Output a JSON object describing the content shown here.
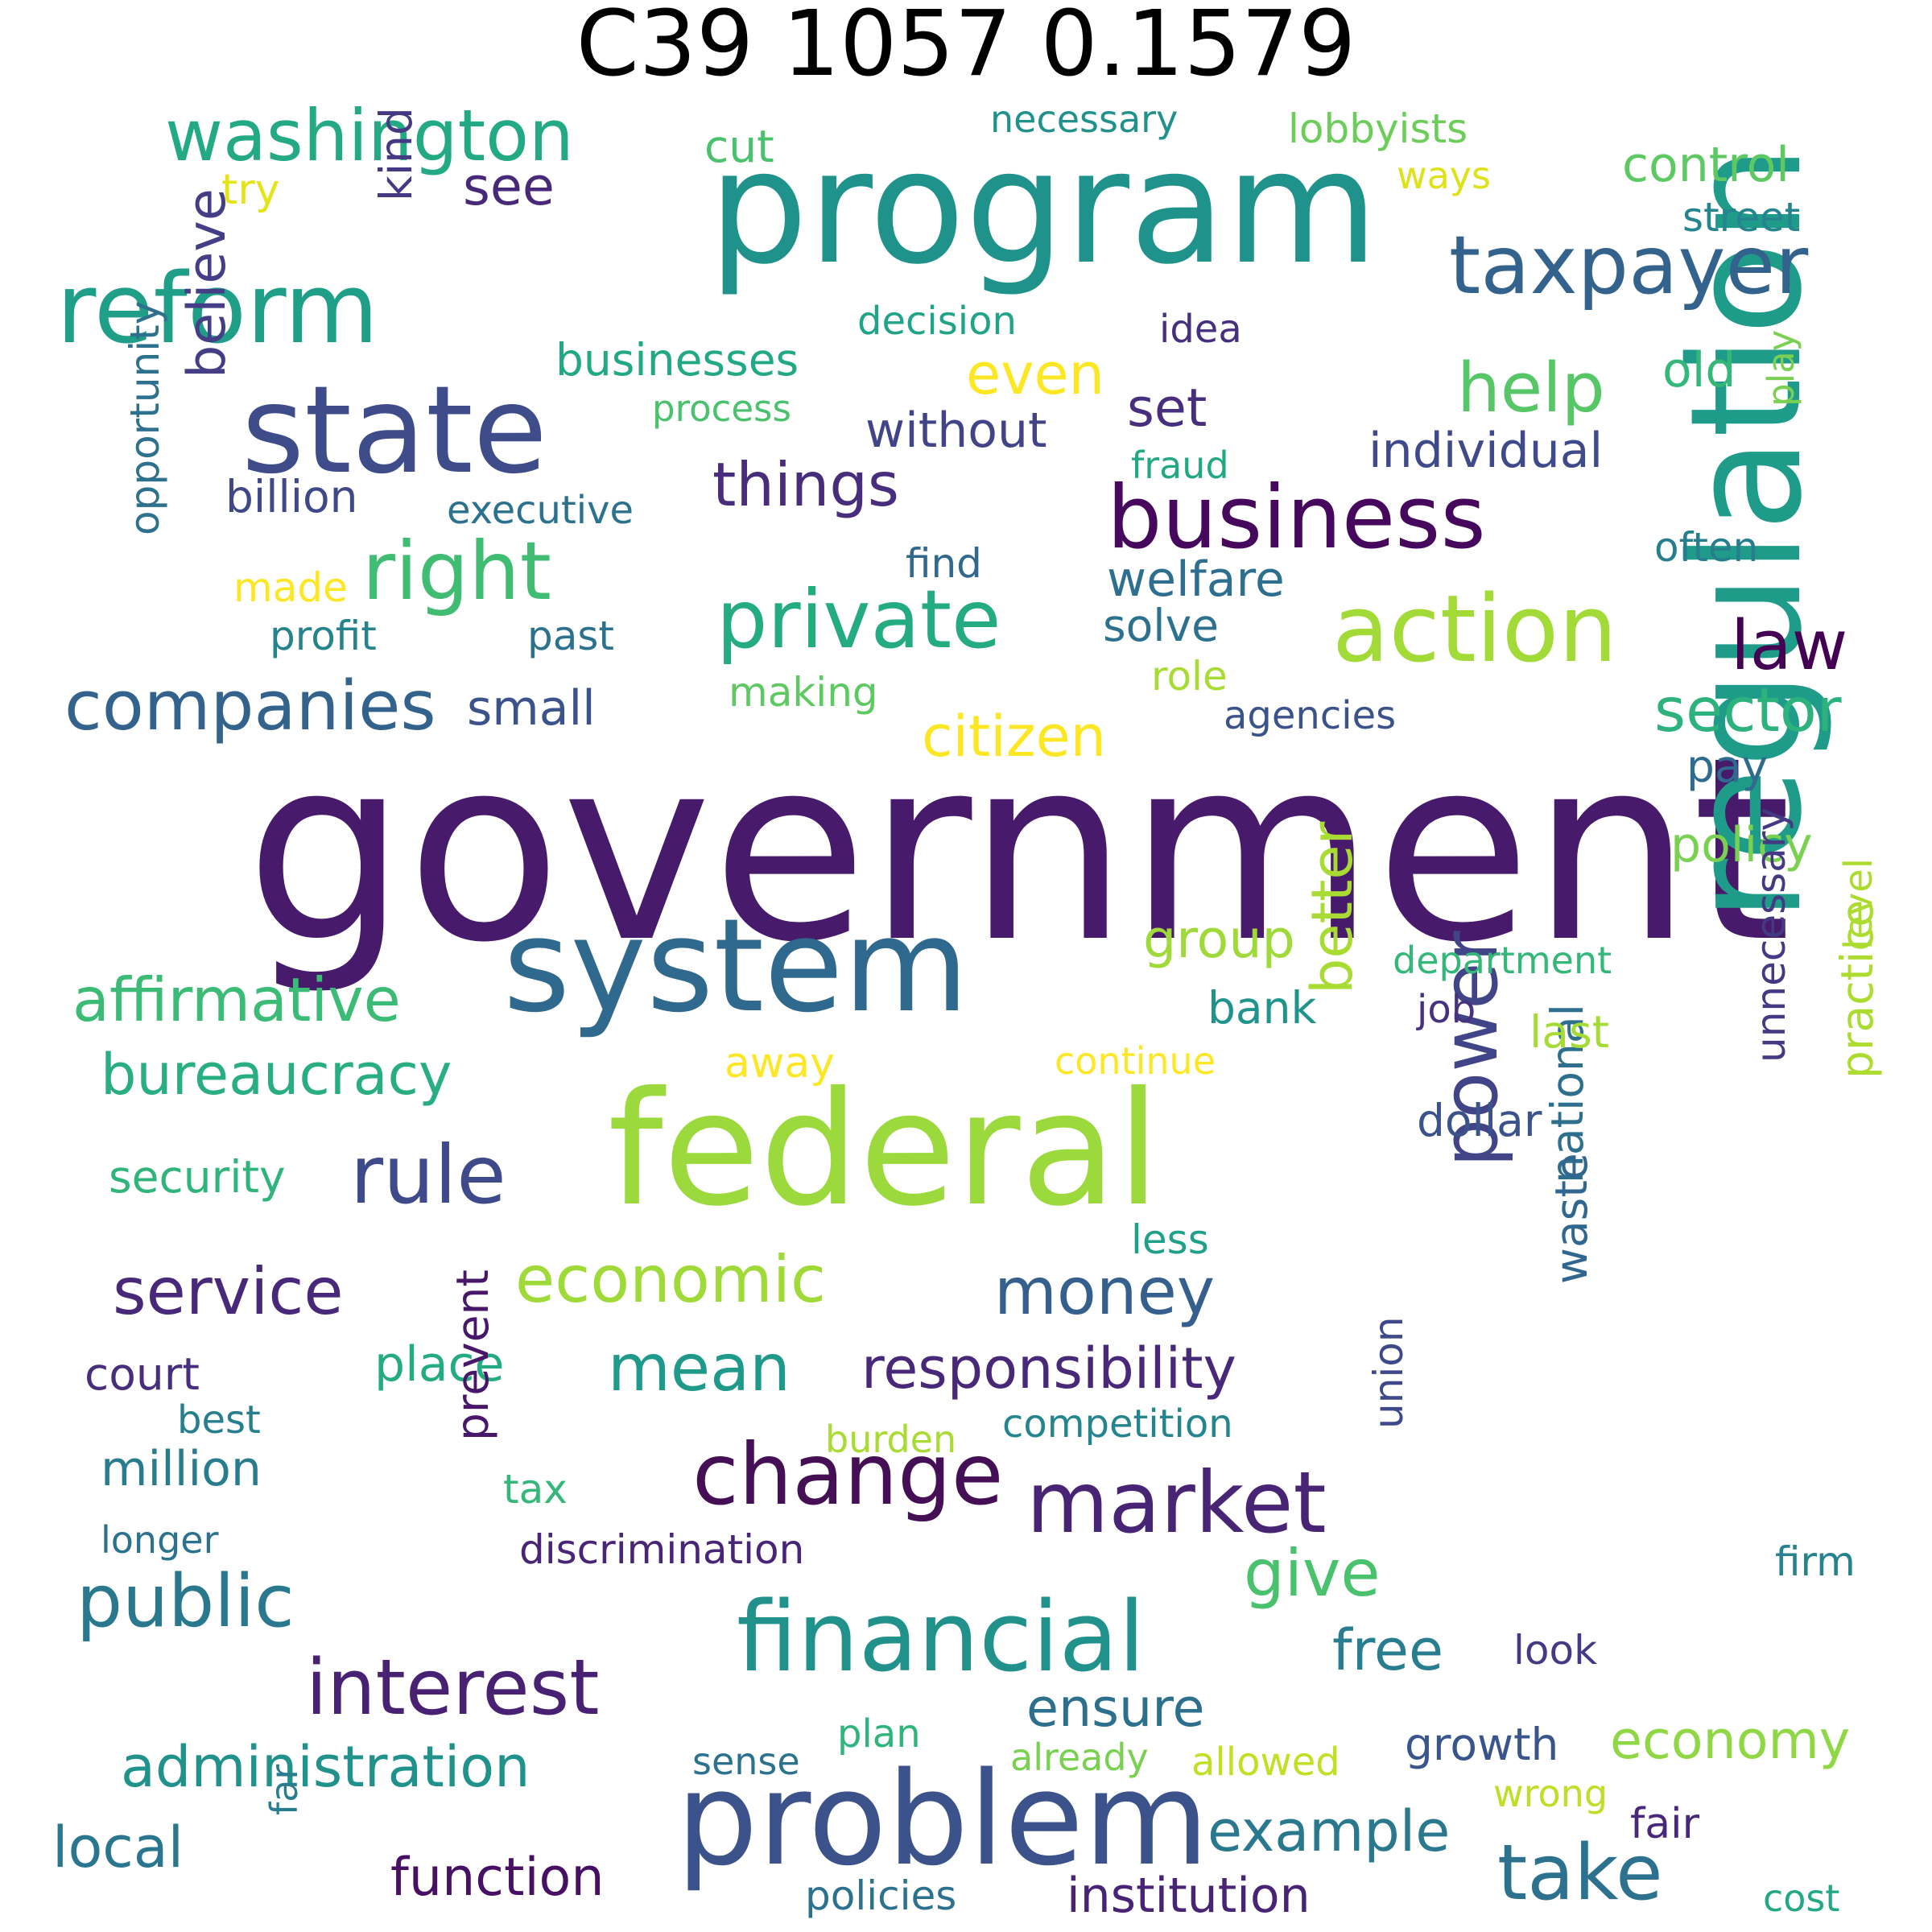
{
  "title": "C39 1057 0.1579",
  "words": [
    {
      "text": "government",
      "color": "#481a6c"
    },
    {
      "text": "program",
      "color": "#1f938b"
    },
    {
      "text": "federal",
      "color": "#9bd93c"
    },
    {
      "text": "regulation",
      "color": "#1e9c89"
    },
    {
      "text": "system",
      "color": "#30698e"
    },
    {
      "text": "problem",
      "color": "#3b528b"
    },
    {
      "text": "state",
      "color": "#3e4c8a"
    },
    {
      "text": "reform",
      "color": "#1f9f88"
    },
    {
      "text": "business",
      "color": "#46085c"
    },
    {
      "text": "action",
      "color": "#a2da37"
    },
    {
      "text": "financial",
      "color": "#21918c"
    },
    {
      "text": "change",
      "color": "#440f55"
    },
    {
      "text": "market",
      "color": "#482475"
    },
    {
      "text": "private",
      "color": "#25ab82"
    },
    {
      "text": "taxpayer",
      "color": "#33638d"
    },
    {
      "text": "washington",
      "color": "#23a983"
    },
    {
      "text": "right",
      "color": "#40bd72"
    },
    {
      "text": "companies",
      "color": "#33638d"
    },
    {
      "text": "rule",
      "color": "#3e4a89"
    },
    {
      "text": "interest",
      "color": "#482173"
    },
    {
      "text": "public",
      "color": "#2a788e"
    },
    {
      "text": "take",
      "color": "#2c728e"
    },
    {
      "text": "power",
      "color": "#414487"
    },
    {
      "text": "economic",
      "color": "#a0da39"
    },
    {
      "text": "law",
      "color": "#440154"
    },
    {
      "text": "help",
      "color": "#56c667"
    },
    {
      "text": "sector",
      "color": "#2db27d"
    },
    {
      "text": "affirmative",
      "color": "#3bbb75"
    },
    {
      "text": "service",
      "color": "#482878"
    },
    {
      "text": "money",
      "color": "#355f8d"
    },
    {
      "text": "mean",
      "color": "#1f9a8a"
    },
    {
      "text": "responsibility",
      "color": "#482878"
    },
    {
      "text": "administration",
      "color": "#21918c"
    },
    {
      "text": "give",
      "color": "#4ac16d"
    },
    {
      "text": "things",
      "color": "#472d7b"
    },
    {
      "text": "bureaucracy",
      "color": "#28ae80"
    },
    {
      "text": "example",
      "color": "#2a788e"
    },
    {
      "text": "free",
      "color": "#287d8e"
    },
    {
      "text": "local",
      "color": "#2a768e"
    },
    {
      "text": "even",
      "color": "#fde725"
    },
    {
      "text": "citizen",
      "color": "#fde725"
    },
    {
      "text": "economy",
      "color": "#8fd744"
    },
    {
      "text": "better",
      "color": "#a8db34"
    },
    {
      "text": "welfare",
      "color": "#2e6e8e"
    },
    {
      "text": "set",
      "color": "#472f7d"
    },
    {
      "text": "see",
      "color": "#482979"
    },
    {
      "text": "believe",
      "color": "#433e85"
    },
    {
      "text": "ensure",
      "color": "#2d708e"
    },
    {
      "text": "function",
      "color": "#471063"
    },
    {
      "text": "institution",
      "color": "#482475"
    },
    {
      "text": "place",
      "color": "#25ab82"
    },
    {
      "text": "group",
      "color": "#9fda3a"
    },
    {
      "text": "without",
      "color": "#414487"
    },
    {
      "text": "individual",
      "color": "#3e4a89"
    },
    {
      "text": "policy",
      "color": "#7ad151"
    },
    {
      "text": "control",
      "color": "#5ec962"
    },
    {
      "text": "prevent",
      "color": "#481769"
    },
    {
      "text": "old",
      "color": "#35b779"
    },
    {
      "text": "million",
      "color": "#287c8e"
    },
    {
      "text": "small",
      "color": "#3b528b"
    },
    {
      "text": "national",
      "color": "#2e6f8e"
    },
    {
      "text": "unnecessary",
      "color": "#443a83"
    },
    {
      "text": "businesses",
      "color": "#22a884"
    },
    {
      "text": "security",
      "color": "#2fb47c"
    },
    {
      "text": "practice",
      "color": "#addc30"
    },
    {
      "text": "court",
      "color": "#472f7d"
    },
    {
      "text": "growth",
      "color": "#39558c"
    },
    {
      "text": "discrimination",
      "color": "#482576"
    },
    {
      "text": "billion",
      "color": "#3f4889"
    },
    {
      "text": "dollar",
      "color": "#3b528b"
    },
    {
      "text": "union",
      "color": "#3e4989"
    },
    {
      "text": "waste",
      "color": "#31668e"
    },
    {
      "text": "solve",
      "color": "#2c728e"
    },
    {
      "text": "last",
      "color": "#a5db36"
    },
    {
      "text": "pay",
      "color": "#2f6b8e"
    },
    {
      "text": "kind",
      "color": "#443983"
    },
    {
      "text": "making",
      "color": "#5ec962"
    },
    {
      "text": "opportunity",
      "color": "#2d718e"
    },
    {
      "text": "often",
      "color": "#277f8e"
    },
    {
      "text": "bank",
      "color": "#20938c"
    },
    {
      "text": "competition",
      "color": "#25858e"
    },
    {
      "text": "fair",
      "color": "#482878"
    },
    {
      "text": "agencies",
      "color": "#3b528b"
    },
    {
      "text": "executive",
      "color": "#2c728e"
    },
    {
      "text": "level",
      "color": "#addc30"
    },
    {
      "text": "necessary",
      "color": "#21918c"
    },
    {
      "text": "lobbyists",
      "color": "#6ccd5a"
    },
    {
      "text": "decision",
      "color": "#20a386"
    },
    {
      "text": "idea",
      "color": "#46307e"
    },
    {
      "text": "process",
      "color": "#4ac16d"
    },
    {
      "text": "play",
      "color": "#7ad151"
    },
    {
      "text": "fraud",
      "color": "#22a884"
    },
    {
      "text": "continue",
      "color": "#fde725"
    },
    {
      "text": "cut",
      "color": "#4ac16d"
    },
    {
      "text": "street",
      "color": "#25858e"
    },
    {
      "text": "ways",
      "color": "#dde318"
    },
    {
      "text": "try",
      "color": "#e5e419"
    },
    {
      "text": "made",
      "color": "#fde725"
    },
    {
      "text": "profit",
      "color": "#25838e"
    },
    {
      "text": "past",
      "color": "#2c728e"
    },
    {
      "text": "role",
      "color": "#a8db34"
    },
    {
      "text": "find",
      "color": "#31688e"
    },
    {
      "text": "away",
      "color": "#fde725"
    },
    {
      "text": "job",
      "color": "#46327e"
    },
    {
      "text": "department",
      "color": "#35b779"
    },
    {
      "text": "less",
      "color": "#1fa088"
    },
    {
      "text": "best",
      "color": "#277f8e"
    },
    {
      "text": "burden",
      "color": "#a8db34"
    },
    {
      "text": "tax",
      "color": "#35b779"
    },
    {
      "text": "longer",
      "color": "#2c728e"
    },
    {
      "text": "firm",
      "color": "#26828e"
    },
    {
      "text": "look",
      "color": "#443983"
    },
    {
      "text": "plan",
      "color": "#2fb47c"
    },
    {
      "text": "sense",
      "color": "#2c728e"
    },
    {
      "text": "already",
      "color": "#7ad151"
    },
    {
      "text": "allowed",
      "color": "#c2df23"
    },
    {
      "text": "wrong",
      "color": "#bddf26"
    },
    {
      "text": "far",
      "color": "#287d8e"
    },
    {
      "text": "policies",
      "color": "#2c728e"
    },
    {
      "text": "cost",
      "color": "#22a884"
    }
  ]
}
